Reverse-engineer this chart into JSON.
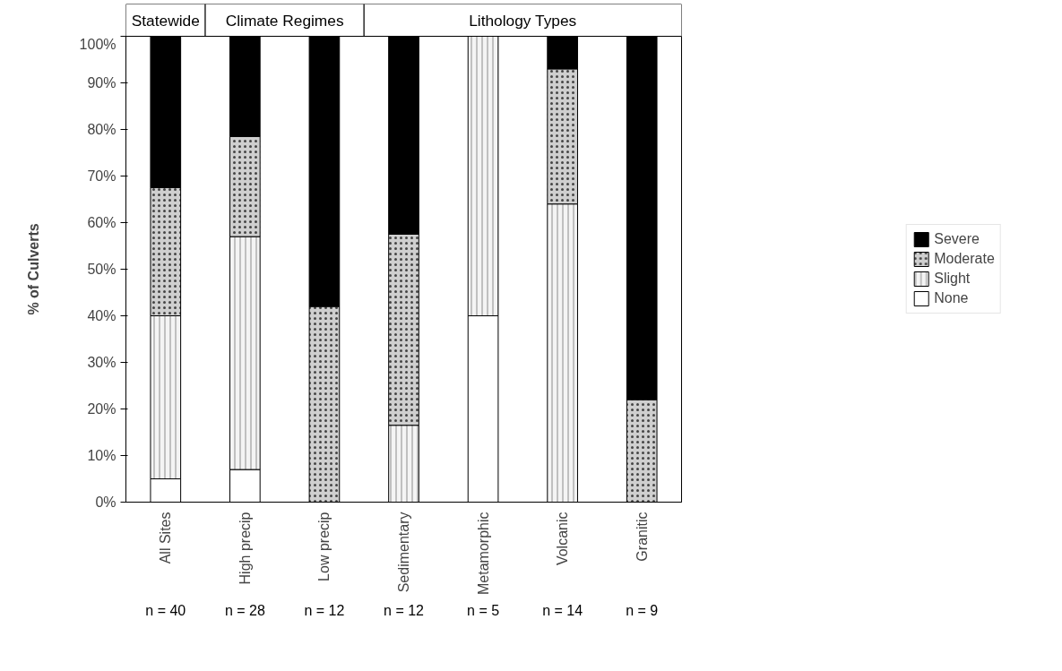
{
  "chart_data": {
    "type": "bar",
    "stacked": true,
    "ylabel": "% of Culverts",
    "categories": [
      "All Sites",
      "High precip",
      "Low precip",
      "Sedimentary",
      "Metamorphic",
      "Volcanic",
      "Granitic"
    ],
    "series": [
      {
        "name": "None",
        "color": "#ffffff",
        "values": [
          5,
          7,
          0,
          0,
          40,
          0,
          0
        ]
      },
      {
        "name": "Slight",
        "color": "#f4f4f4",
        "values": [
          35,
          50,
          0,
          16.5,
          60,
          64,
          0
        ]
      },
      {
        "name": "Moderate",
        "color": "#cfcfcf",
        "values": [
          27.5,
          21.5,
          42,
          41,
          0,
          29,
          22
        ]
      },
      {
        "name": "Severe",
        "color": "#000000",
        "values": [
          32.5,
          21.5,
          58,
          42.5,
          0,
          7,
          78
        ]
      }
    ],
    "ylim": [
      0,
      100
    ],
    "yticks": [
      {
        "value": 0,
        "label": "0%"
      },
      {
        "value": 10,
        "label": "10%"
      },
      {
        "value": 20,
        "label": "20%"
      },
      {
        "value": 30,
        "label": "30%"
      },
      {
        "value": 40,
        "label": "40%"
      },
      {
        "value": 50,
        "label": "50%"
      },
      {
        "value": 60,
        "label": "60%"
      },
      {
        "value": 70,
        "label": "70%"
      },
      {
        "value": 80,
        "label": "80%"
      },
      {
        "value": 90,
        "label": "90%"
      },
      {
        "value": 100,
        "label": "100%"
      }
    ],
    "grid": false,
    "legend": "right",
    "annotations": [
      "Statewide",
      "Climate Regimes",
      "Lithology Types",
      "n = 40",
      "n = 28",
      "n = 12",
      "n = 12",
      "n = 5",
      "n = 14",
      "n = 9"
    ]
  }
}
